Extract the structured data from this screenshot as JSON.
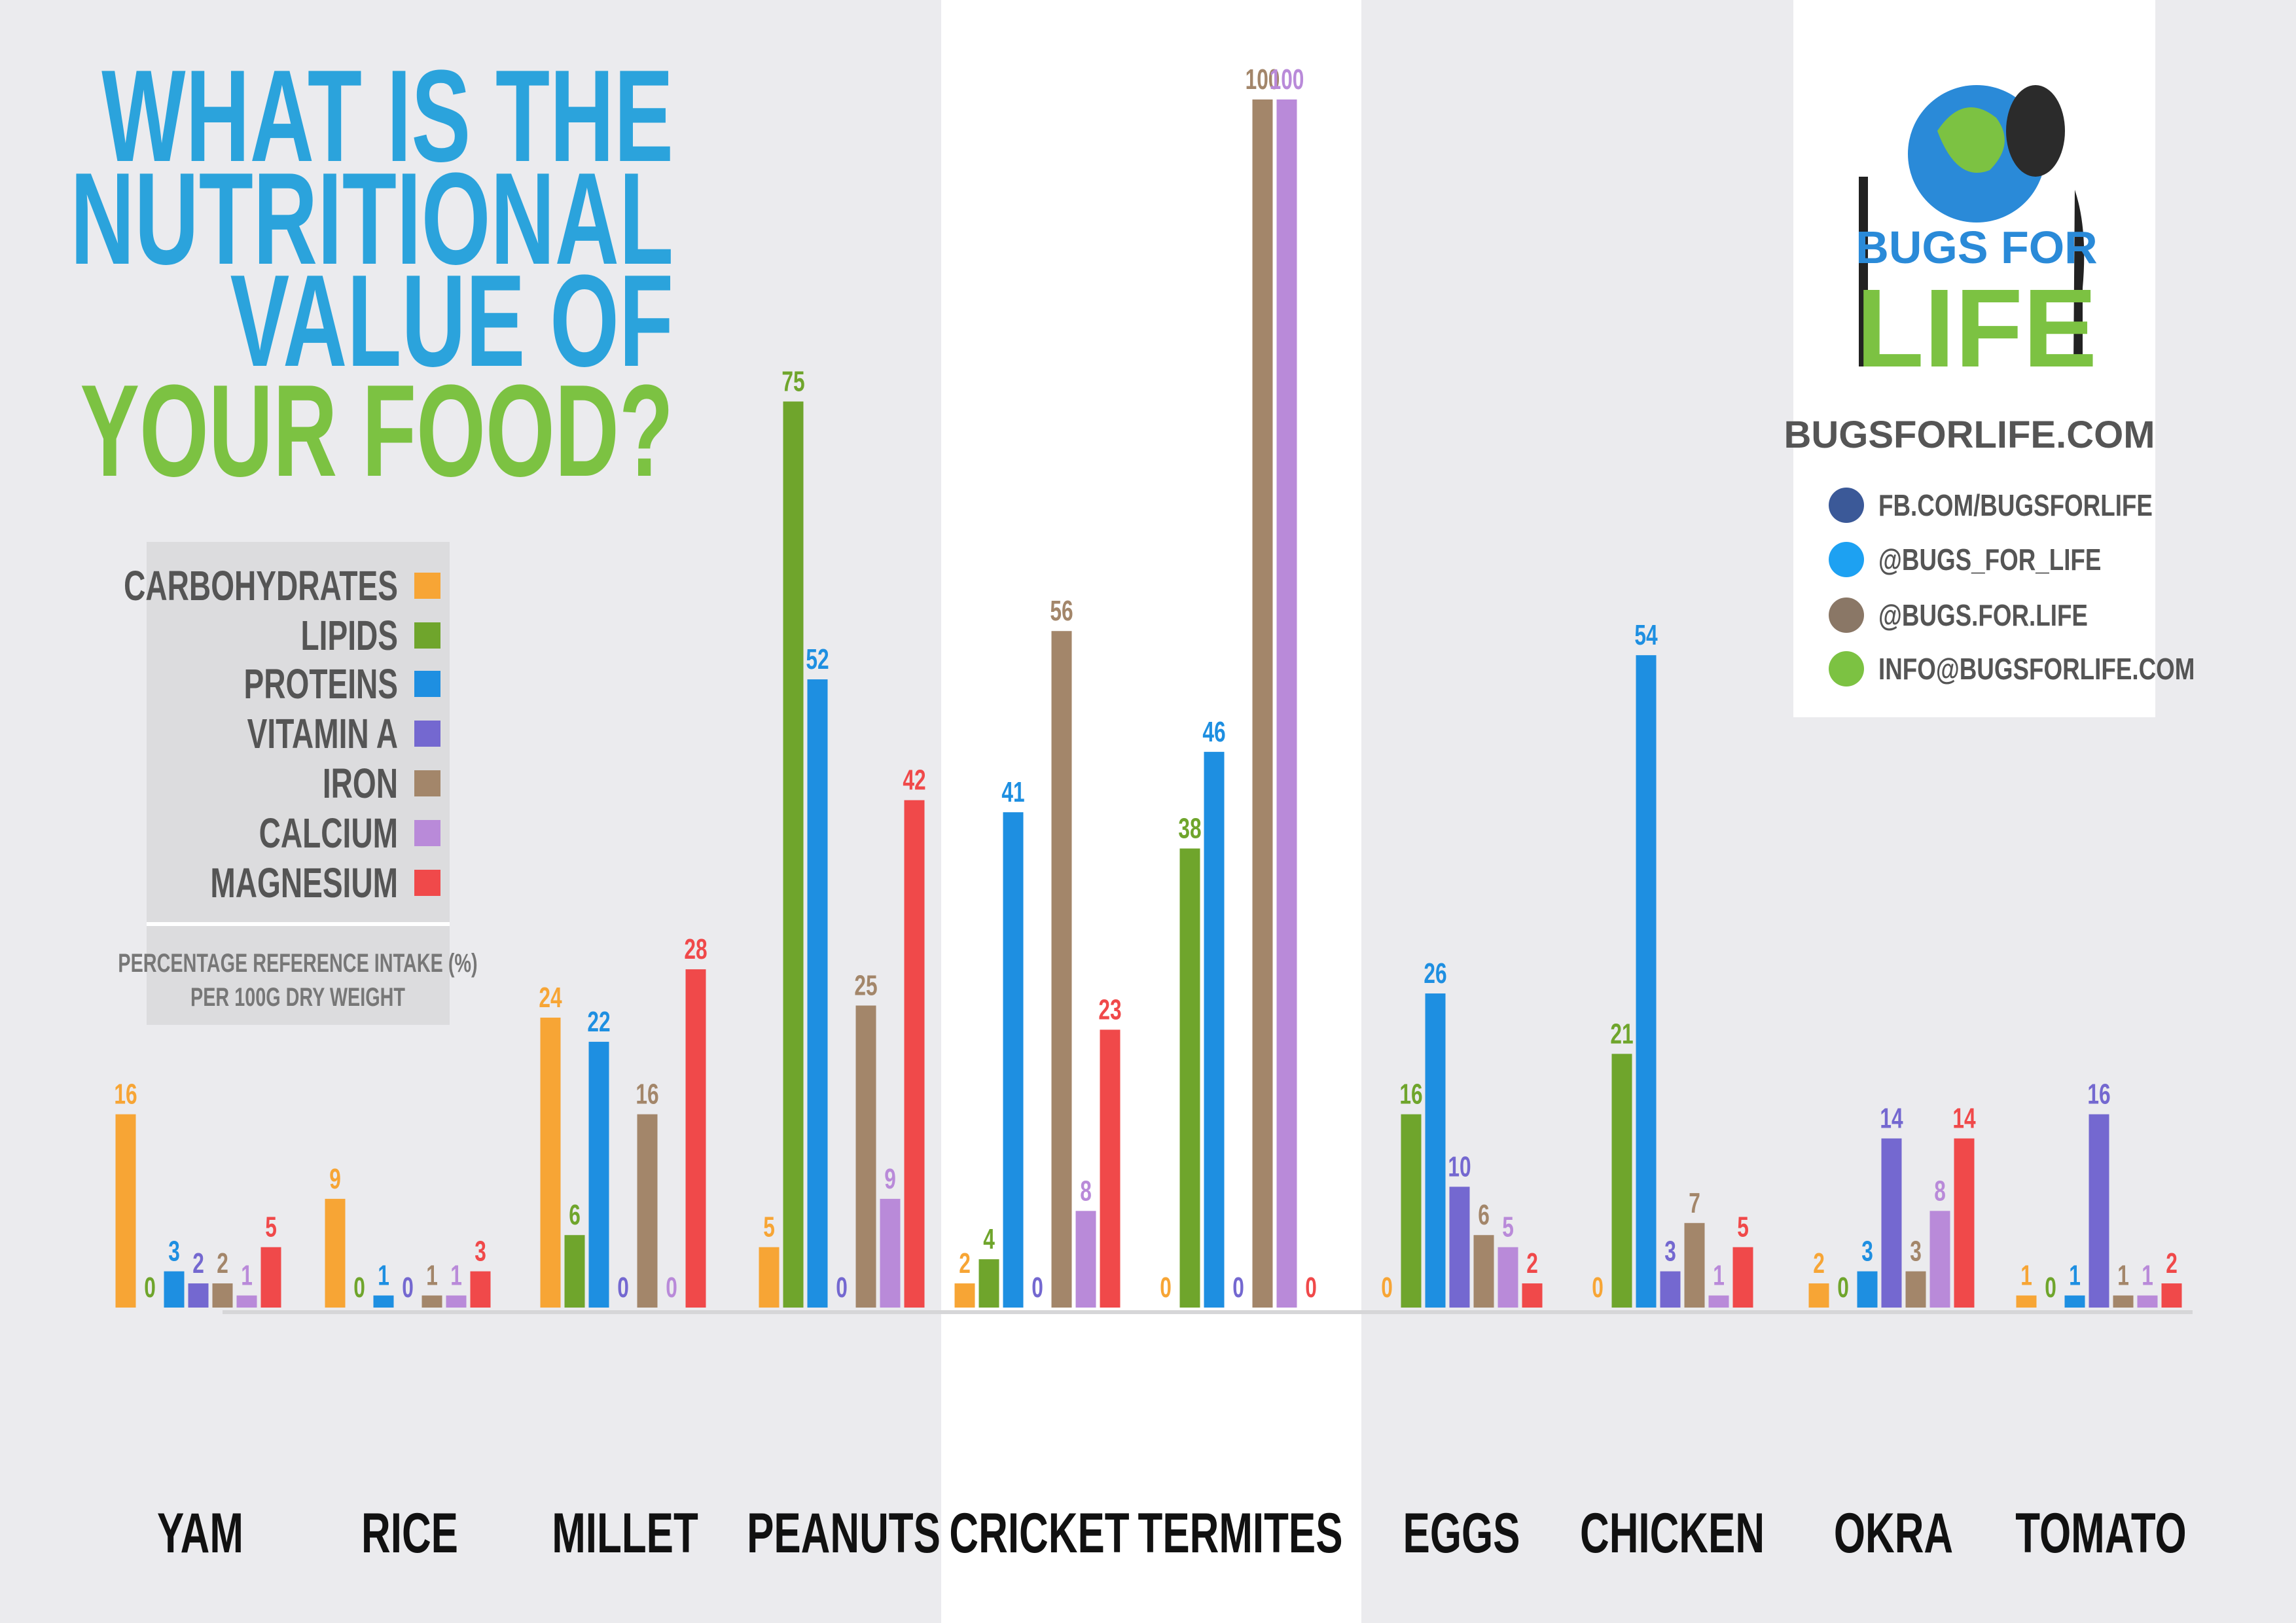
{
  "chart_data": {
    "type": "bar",
    "title_lines": [
      "WHAT IS THE",
      "NUTRITIONAL",
      "VALUE OF",
      "YOUR FOOD?"
    ],
    "categories": [
      "YAM",
      "RICE",
      "MILLET",
      "PEANUTS",
      "CRICKET",
      "TERMITES",
      "EGGS",
      "CHICKEN",
      "OKRA",
      "TOMATO"
    ],
    "series": [
      {
        "name": "CARBOHYDRATES",
        "color": "#f7a535",
        "values": [
          16,
          9,
          24,
          5,
          2,
          0,
          0,
          0,
          2,
          1
        ]
      },
      {
        "name": "LIPIDS",
        "color": "#6fa52c",
        "values": [
          0,
          0,
          6,
          75,
          4,
          38,
          16,
          21,
          0,
          0
        ]
      },
      {
        "name": "PROTEINS",
        "color": "#1e8fe1",
        "values": [
          3,
          1,
          22,
          52,
          41,
          46,
          26,
          54,
          3,
          1
        ]
      },
      {
        "name": "VITAMIN A",
        "color": "#7468d0",
        "values": [
          2,
          0,
          0,
          0,
          0,
          0,
          10,
          3,
          14,
          16
        ]
      },
      {
        "name": "IRON",
        "color": "#a3866a",
        "values": [
          2,
          1,
          16,
          25,
          56,
          100,
          6,
          7,
          3,
          1
        ]
      },
      {
        "name": "CALCIUM",
        "color": "#b98ad9",
        "values": [
          1,
          1,
          0,
          9,
          8,
          100,
          5,
          1,
          8,
          1
        ]
      },
      {
        "name": "MAGNESIUM",
        "color": "#f0494a",
        "values": [
          5,
          3,
          28,
          42,
          23,
          0,
          2,
          5,
          14,
          2
        ]
      }
    ],
    "note_lines": [
      "PERCENTAGE REFERENCE INTAKE (%)",
      "PER 100G DRY WEIGHT"
    ]
  },
  "brand": {
    "logo_top": "BUGS FOR",
    "logo_bottom": "LIFE",
    "website": "BUGSFORLIFE.COM",
    "links": [
      "FB.COM/BUGSFORLIFE",
      "@BUGS_FOR_LIFE",
      "@BUGS.FOR.LIFE",
      "INFO@BUGSFORLIFE.COM"
    ]
  }
}
